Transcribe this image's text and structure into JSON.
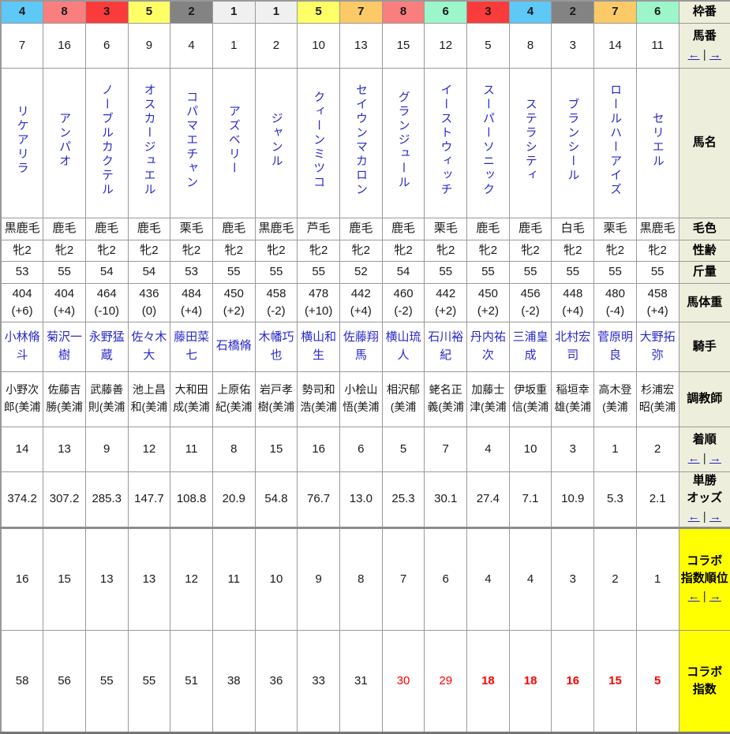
{
  "header_column": {
    "waku": "枠番",
    "num": "馬番",
    "name": "馬名",
    "coat": "毛色",
    "sex": "性齢",
    "weight": "斤量",
    "body": "馬体重",
    "jockey": "騎手",
    "trainer": "調教師",
    "finish": "着順",
    "odds_l1": "単勝",
    "odds_l2": "オッズ",
    "rank_l1": "コラボ",
    "rank_l2": "指数順位",
    "index_l1": "コラボ",
    "index_l2": "指数"
  },
  "nav": {
    "left": "←",
    "sep": "|",
    "right": "→"
  },
  "waku_colors": {
    "1": "#f0f0f0",
    "2": "#838383",
    "3": "#fa3b3b",
    "4": "#5ec8f7",
    "5": "#ffff66",
    "6": "#9cf6ca",
    "7": "#fbc966",
    "8": "#f97e7e"
  },
  "colors": {
    "header_bg": "#eeeedc",
    "highlight_bg": "#ffff00",
    "link_blue": "#2929cc",
    "alert_red": "#ff0000"
  },
  "horses": [
    {
      "waku": "4",
      "num": "7",
      "name": "リケアリラ",
      "coat": "黒鹿毛",
      "sex": "牝2",
      "weight": "53",
      "body": "404",
      "body_diff": "(+6)",
      "jockey": "小林脩斗",
      "trainer": "小野次郎(美浦",
      "finish": "14",
      "odds": "374.2",
      "rank": "16",
      "index": "58",
      "index_red": false,
      "index_bold": false
    },
    {
      "waku": "8",
      "num": "16",
      "name": "アンパオ",
      "coat": "鹿毛",
      "sex": "牝2",
      "weight": "55",
      "body": "404",
      "body_diff": "(+4)",
      "jockey": "菊沢一樹",
      "trainer": "佐藤吉勝(美浦",
      "finish": "13",
      "odds": "307.2",
      "rank": "15",
      "index": "56",
      "index_red": false,
      "index_bold": false
    },
    {
      "waku": "3",
      "num": "6",
      "name": "ノーブルカクテル",
      "coat": "鹿毛",
      "sex": "牝2",
      "weight": "54",
      "body": "464",
      "body_diff": "(-10)",
      "jockey": "永野猛蔵",
      "trainer": "武藤善則(美浦",
      "finish": "9",
      "odds": "285.3",
      "rank": "13",
      "index": "55",
      "index_red": false,
      "index_bold": false
    },
    {
      "waku": "5",
      "num": "9",
      "name": "オスカージュエル",
      "coat": "鹿毛",
      "sex": "牝2",
      "weight": "54",
      "body": "436",
      "body_diff": "(0)",
      "jockey": "佐々木大",
      "trainer": "池上昌和(美浦",
      "finish": "12",
      "odds": "147.7",
      "rank": "13",
      "index": "55",
      "index_red": false,
      "index_bold": false
    },
    {
      "waku": "2",
      "num": "4",
      "name": "コパマエチャン",
      "coat": "栗毛",
      "sex": "牝2",
      "weight": "53",
      "body": "484",
      "body_diff": "(+4)",
      "jockey": "藤田菜七",
      "trainer": "大和田成(美浦",
      "finish": "11",
      "odds": "108.8",
      "rank": "12",
      "index": "51",
      "index_red": false,
      "index_bold": false
    },
    {
      "waku": "1",
      "num": "1",
      "name": "アズベリー",
      "coat": "鹿毛",
      "sex": "牝2",
      "weight": "55",
      "body": "450",
      "body_diff": "(+2)",
      "jockey": "石橋脩",
      "trainer": "上原佑紀(美浦",
      "finish": "8",
      "odds": "20.9",
      "rank": "11",
      "index": "38",
      "index_red": false,
      "index_bold": false
    },
    {
      "waku": "1",
      "num": "2",
      "name": "ジャンル",
      "coat": "黒鹿毛",
      "sex": "牝2",
      "weight": "55",
      "body": "458",
      "body_diff": "(-2)",
      "jockey": "木幡巧也",
      "trainer": "岩戸孝樹(美浦",
      "finish": "15",
      "odds": "54.8",
      "rank": "10",
      "index": "36",
      "index_red": false,
      "index_bold": false
    },
    {
      "waku": "5",
      "num": "10",
      "name": "クィーンミツコ",
      "coat": "芦毛",
      "sex": "牝2",
      "weight": "55",
      "body": "478",
      "body_diff": "(+10)",
      "jockey": "横山和生",
      "trainer": "勢司和浩(美浦",
      "finish": "16",
      "odds": "76.7",
      "rank": "9",
      "index": "33",
      "index_red": false,
      "index_bold": false
    },
    {
      "waku": "7",
      "num": "13",
      "name": "セイウンマカロン",
      "coat": "鹿毛",
      "sex": "牝2",
      "weight": "52",
      "body": "442",
      "body_diff": "(+4)",
      "jockey": "佐藤翔馬",
      "trainer": "小桧山悟(美浦",
      "finish": "6",
      "odds": "13.0",
      "rank": "8",
      "index": "31",
      "index_red": false,
      "index_bold": false
    },
    {
      "waku": "8",
      "num": "15",
      "name": "グランジュール",
      "coat": "鹿毛",
      "sex": "牝2",
      "weight": "54",
      "body": "460",
      "body_diff": "(-2)",
      "jockey": "横山琉人",
      "trainer": "相沢郁(美浦",
      "finish": "5",
      "odds": "25.3",
      "rank": "7",
      "index": "30",
      "index_red": true,
      "index_bold": false
    },
    {
      "waku": "6",
      "num": "12",
      "name": "イーストウィッチ",
      "coat": "栗毛",
      "sex": "牝2",
      "weight": "55",
      "body": "442",
      "body_diff": "(+2)",
      "jockey": "石川裕紀",
      "trainer": "蛯名正義(美浦",
      "finish": "7",
      "odds": "30.1",
      "rank": "6",
      "index": "29",
      "index_red": true,
      "index_bold": false
    },
    {
      "waku": "3",
      "num": "5",
      "name": "スーパーソニック",
      "coat": "鹿毛",
      "sex": "牝2",
      "weight": "55",
      "body": "450",
      "body_diff": "(+2)",
      "jockey": "丹内祐次",
      "trainer": "加藤士津(美浦",
      "finish": "4",
      "odds": "27.4",
      "rank": "4",
      "index": "18",
      "index_red": true,
      "index_bold": true
    },
    {
      "waku": "4",
      "num": "8",
      "name": "ステラシティ",
      "coat": "鹿毛",
      "sex": "牝2",
      "weight": "55",
      "body": "456",
      "body_diff": "(-2)",
      "jockey": "三浦皇成",
      "trainer": "伊坂重信(美浦",
      "finish": "10",
      "odds": "7.1",
      "rank": "4",
      "index": "18",
      "index_red": true,
      "index_bold": true
    },
    {
      "waku": "2",
      "num": "3",
      "name": "ブランシール",
      "coat": "白毛",
      "sex": "牝2",
      "weight": "55",
      "body": "448",
      "body_diff": "(+4)",
      "jockey": "北村宏司",
      "trainer": "稲垣幸雄(美浦",
      "finish": "3",
      "odds": "10.9",
      "rank": "3",
      "index": "16",
      "index_red": true,
      "index_bold": true
    },
    {
      "waku": "7",
      "num": "14",
      "name": "ロールハーアイズ",
      "coat": "栗毛",
      "sex": "牝2",
      "weight": "55",
      "body": "480",
      "body_diff": "(-4)",
      "jockey": "菅原明良",
      "trainer": "高木登(美浦",
      "finish": "1",
      "odds": "5.3",
      "rank": "2",
      "index": "15",
      "index_red": true,
      "index_bold": true
    },
    {
      "waku": "6",
      "num": "11",
      "name": "セリエル",
      "coat": "黒鹿毛",
      "sex": "牝2",
      "weight": "55",
      "body": "458",
      "body_diff": "(+4)",
      "jockey": "大野拓弥",
      "trainer": "杉浦宏昭(美浦",
      "finish": "2",
      "odds": "2.1",
      "rank": "1",
      "index": "5",
      "index_red": true,
      "index_bold": true
    }
  ]
}
